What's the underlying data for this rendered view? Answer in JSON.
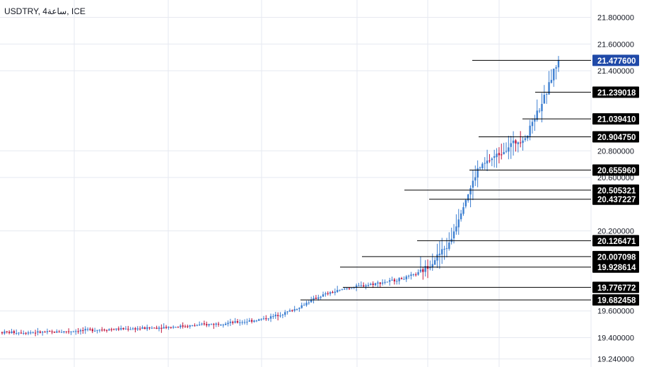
{
  "header": {
    "title": "USDTRY, 4ساعة, ICE"
  },
  "colors": {
    "up": "#3d7fd1",
    "down": "#c0163e",
    "grid": "#e6e9f0",
    "line": "#000000",
    "active_label_bg": "#1f49a8"
  },
  "chart_data": {
    "type": "candlestick",
    "title": "USDTRY, 4ساعة, ICE",
    "ylim": [
      19.18,
      21.93
    ],
    "yticks": [
      "21.800000",
      "21.600000",
      "21.400000",
      "20.800000",
      "20.600000",
      "20.200000",
      "19.600000",
      "19.400000",
      "19.240000"
    ],
    "ytick_values": [
      21.8,
      21.6,
      21.4,
      20.8,
      20.6,
      20.2,
      19.6,
      19.4,
      19.24
    ],
    "grid": true,
    "levels": [
      {
        "label": "21.477600",
        "value": 21.4776,
        "active": true
      },
      {
        "label": "21.239018",
        "value": 21.239018
      },
      {
        "label": "21.039410",
        "value": 21.03941
      },
      {
        "label": "20.904750",
        "value": 20.90475
      },
      {
        "label": "20.655960",
        "value": 20.65596
      },
      {
        "label": "20.505321",
        "value": 20.505321
      },
      {
        "label": "20.437227",
        "value": 20.437227
      },
      {
        "label": "20.126471",
        "value": 20.126471
      },
      {
        "label": "20.007098",
        "value": 20.007098
      },
      {
        "label": "19.928614",
        "value": 19.928614
      },
      {
        "label": "19.776772",
        "value": 19.776772
      },
      {
        "label": "19.682458",
        "value": 19.682458
      }
    ],
    "anchors": [
      [
        0,
        19.44
      ],
      [
        20,
        19.44
      ],
      [
        40,
        19.46
      ],
      [
        60,
        19.47
      ],
      [
        80,
        19.49
      ],
      [
        95,
        19.51
      ],
      [
        102,
        19.52
      ],
      [
        110,
        19.54
      ],
      [
        118,
        19.58
      ],
      [
        124,
        19.62
      ],
      [
        130,
        19.68
      ],
      [
        135,
        19.72
      ],
      [
        145,
        19.77
      ],
      [
        155,
        19.8
      ],
      [
        165,
        19.83
      ],
      [
        170,
        19.85
      ],
      [
        176,
        19.89
      ],
      [
        180,
        19.95
      ],
      [
        184,
        20.03
      ],
      [
        188,
        20.1
      ],
      [
        191,
        20.25
      ],
      [
        194,
        20.4
      ],
      [
        197,
        20.52
      ],
      [
        200,
        20.66
      ],
      [
        205,
        20.73
      ],
      [
        210,
        20.79
      ],
      [
        214,
        20.85
      ],
      [
        218,
        20.88
      ],
      [
        221,
        20.92
      ],
      [
        223,
        21.02
      ],
      [
        226,
        21.12
      ],
      [
        229,
        21.24
      ],
      [
        232,
        21.4
      ],
      [
        234,
        21.47
      ]
    ],
    "candle_count": 235
  }
}
